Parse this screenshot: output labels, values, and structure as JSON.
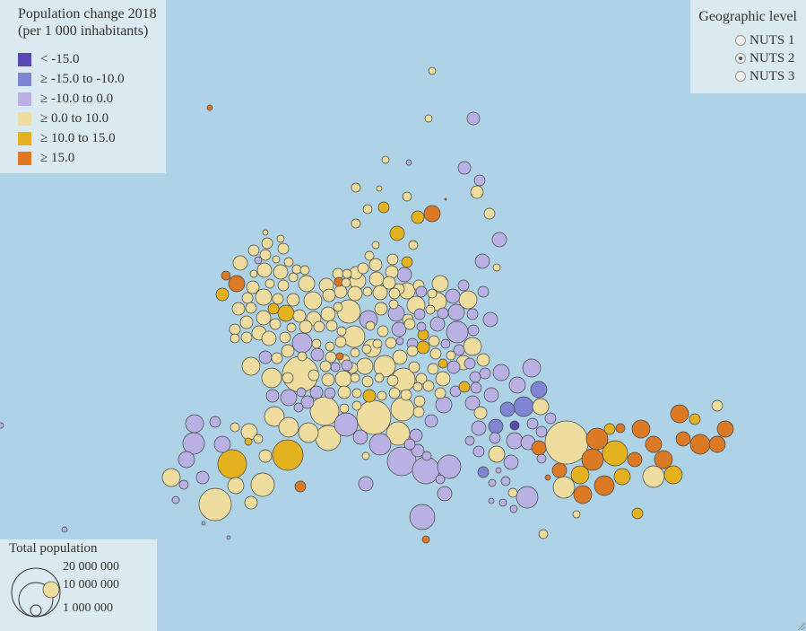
{
  "legend": {
    "title_line1": "Population change 2018",
    "title_line2": "(per 1 000 inhabitants)",
    "classes": [
      {
        "label": "< -15.0",
        "color": "#5a48b4"
      },
      {
        "label": "≥ -15.0 to -10.0",
        "color": "#7f85d2"
      },
      {
        "label": "≥ -10.0 to 0.0",
        "color": "#b9b1e4"
      },
      {
        "label": "≥ 0.0 to 10.0",
        "color": "#eedd9e"
      },
      {
        "label": "≥ 10.0 to 15.0",
        "color": "#e3b21e"
      },
      {
        "label": "≥ 15.0",
        "color": "#db7925"
      }
    ]
  },
  "geo_level": {
    "title": "Geographic level",
    "options": [
      "NUTS 1",
      "NUTS 2",
      "NUTS 3"
    ],
    "selected": "NUTS 2"
  },
  "size_legend": {
    "title": "Total population",
    "values": [
      "20 000 000",
      "10 000 000",
      "1 000 000"
    ]
  },
  "colors": {
    "sea": "#aed3e6",
    "panel": "#dbe9f0",
    "bubble_stroke": "#444444"
  }
}
